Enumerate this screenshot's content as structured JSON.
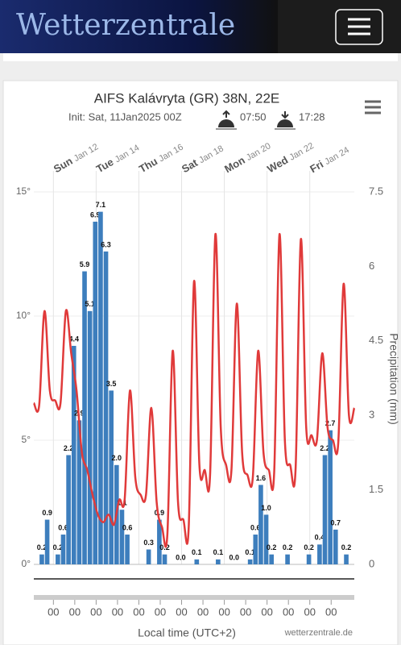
{
  "header": {
    "logo": "Wetterzentrale"
  },
  "chart_data": {
    "type": "combo",
    "title": "AIFS Kalávryta (GR) 38N, 22E",
    "subtitle": "Init: Sat, 11Jan2025 00Z",
    "sunrise": "07:50",
    "sunset": "17:28",
    "y2_label": "Precipitation (mm)",
    "x_label": "Local time (UTC+2)",
    "credit": "wetterzentrale.de",
    "xlim": [
      0,
      360
    ],
    "xticks": [
      {
        "value": 22,
        "label": "00"
      },
      {
        "value": 46,
        "label": "00"
      },
      {
        "value": 70,
        "label": "00"
      },
      {
        "value": 94,
        "label": "00"
      },
      {
        "value": 118,
        "label": "00"
      },
      {
        "value": 142,
        "label": "00"
      },
      {
        "value": 166,
        "label": "00"
      },
      {
        "value": 190,
        "label": "00"
      },
      {
        "value": 214,
        "label": "00"
      },
      {
        "value": 238,
        "label": "00"
      },
      {
        "value": 262,
        "label": "00"
      },
      {
        "value": 286,
        "label": "00"
      },
      {
        "value": 310,
        "label": "00"
      },
      {
        "value": 334,
        "label": "00"
      }
    ],
    "top_xticks": [
      {
        "value": 22,
        "label": "Sun",
        "date": "Jan 12"
      },
      {
        "value": 70,
        "label": "Tue",
        "date": "Jan 14"
      },
      {
        "value": 118,
        "label": "Thu",
        "date": "Jan 16"
      },
      {
        "value": 166,
        "label": "Sat",
        "date": "Jan 18"
      },
      {
        "value": 214,
        "label": "Mon",
        "date": "Jan 20"
      },
      {
        "value": 262,
        "label": "Wed",
        "date": "Jan 22"
      },
      {
        "value": 310,
        "label": "Fri",
        "date": "Jan 24"
      }
    ],
    "ylim": [
      0,
      15
    ],
    "yticks": [
      {
        "value": 0,
        "label": "0°"
      },
      {
        "value": 5,
        "label": "5°"
      },
      {
        "value": 10,
        "label": "10°"
      },
      {
        "value": 15,
        "label": "15°"
      }
    ],
    "y2lim": [
      0,
      7.5
    ],
    "y2ticks": [
      0,
      1.5,
      3,
      4.5,
      6,
      7.5
    ],
    "series": [
      {
        "type": "bar",
        "axis": "y2",
        "color": "#3d7ebd",
        "x": [
          9,
          15,
          27,
          33,
          39,
          45,
          51,
          57,
          63,
          69,
          75,
          81,
          87,
          93,
          99,
          105,
          129,
          141,
          147,
          165,
          183,
          207,
          225,
          243,
          249,
          255,
          261,
          267,
          285,
          309,
          321,
          327,
          333,
          339,
          351
        ],
        "values": [
          0.2,
          0.9,
          0.2,
          0.6,
          2.2,
          4.4,
          2.9,
          5.9,
          5.1,
          6.9,
          7.1,
          6.3,
          3.5,
          2.0,
          1.1,
          0.6,
          0.3,
          0.9,
          0.2,
          0.0,
          0.1,
          0.1,
          0.0,
          0.1,
          0.6,
          1.6,
          1.0,
          0.2,
          0.2,
          0.2,
          0.4,
          2.2,
          2.7,
          0.7,
          0.2
        ],
        "value_labels": [
          "0.2",
          "0.9",
          "0.2",
          "0.6",
          "2.2",
          "4.4",
          "2.9",
          "5.9",
          "5.1",
          "6.9",
          "7.1",
          "6.3",
          "3.5",
          "2.0",
          "1.1",
          "0.6",
          "0.3",
          "0.9",
          "0.2",
          "0.0",
          "0.1",
          "0.1",
          "0.0",
          "0.1",
          "0.6",
          "1.6",
          "1.0",
          "0.2",
          "0.2",
          "0.2",
          "0.4",
          "2.2",
          "2.7",
          "0.7",
          "0.2"
        ]
      },
      {
        "type": "line",
        "color": "#e03a3a",
        "x": [
          0,
          6,
          12,
          18,
          24,
          30,
          36,
          42,
          48,
          54,
          60,
          66,
          72,
          78,
          84,
          90,
          96,
          102,
          108,
          114,
          120,
          126,
          132,
          138,
          144,
          150,
          156,
          162,
          168,
          174,
          180,
          186,
          192,
          198,
          204,
          210,
          216,
          222,
          228,
          234,
          240,
          246,
          252,
          258,
          264,
          270,
          276,
          282,
          288,
          294,
          300,
          306,
          312,
          318,
          324,
          330,
          336,
          342,
          348,
          354,
          360
        ],
        "values": [
          6.5,
          6.4,
          10.2,
          7.0,
          6.6,
          6.5,
          10.2,
          8.5,
          7.0,
          4.5,
          3.8,
          2.8,
          2.0,
          1.7,
          2.0,
          1.6,
          2.6,
          2.6,
          7.0,
          3.5,
          2.8,
          2.8,
          6.3,
          2.5,
          1.5,
          1.2,
          8.6,
          2.5,
          1.8,
          1.5,
          11.4,
          4.0,
          3.8,
          3.6,
          13.3,
          5.5,
          4.0,
          3.8,
          10.5,
          4.5,
          3.6,
          3.5,
          8.6,
          4.5,
          3.8,
          3.7,
          13.3,
          5.0,
          4.0,
          3.8,
          13.1,
          5.5,
          5.2,
          5.0,
          8.5,
          5.5,
          5.0,
          4.9,
          11.3,
          6.0,
          6.3
        ]
      }
    ]
  }
}
